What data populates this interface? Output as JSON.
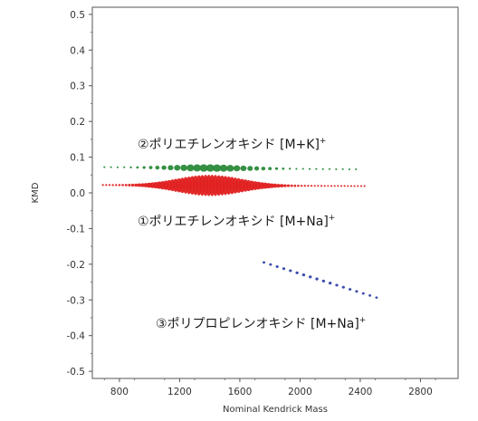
{
  "chart_data": {
    "type": "scatter",
    "title": "",
    "xlabel": "Nominal Kendrick Mass",
    "ylabel": "KMD",
    "xlim": [
      620,
      3050
    ],
    "ylim": [
      -0.52,
      0.52
    ],
    "xticks": [
      800,
      1200,
      1600,
      2000,
      2400,
      2800
    ],
    "yticks": [
      0.5,
      0.4,
      0.3,
      0.2,
      0.1,
      0.0,
      -0.1,
      -0.2,
      -0.3,
      -0.4,
      -0.5
    ],
    "ytick_labels": [
      "0.5",
      "0.4",
      "0.3",
      "0.2",
      "0.1",
      "0.0",
      "-0.1",
      "-0.2",
      "-0.3",
      "-0.4",
      "-0.5"
    ],
    "grid": false,
    "legend": "none",
    "series": [
      {
        "color": "#2a8a3a",
        "x_start": 700,
        "x_end": 2350,
        "x_step": 44,
        "y_start": 0.072,
        "y_end": 0.066,
        "peak_x": 1400,
        "peak_size": 0.0105,
        "min_size": 0.0015,
        "spread": 380
      },
      {
        "color": "#e02020",
        "x_start": 690,
        "x_end": 2420,
        "x_step": 22,
        "y_start": 0.022,
        "y_end": 0.019,
        "peak_x": 1400,
        "peak_size": 0.03,
        "min_size": 0.0025,
        "spread": 300
      },
      {
        "color": "#3344aa",
        "x_start": 1760,
        "x_end": 2520,
        "x_step": 44,
        "y_start": -0.195,
        "y_end": -0.295,
        "peak_x": 2100,
        "peak_size": 0.004,
        "min_size": 0.003,
        "spread": 400
      }
    ],
    "annotations": [
      {
        "text": "②ポリエチレンオキシド [M+K]",
        "sup": "+"
      },
      {
        "text": "①ポリエチレンオキシド [M+Na]",
        "sup": "+"
      },
      {
        "text": "③ポリプロピレンオキシド [M+Na]",
        "sup": "+"
      }
    ]
  }
}
